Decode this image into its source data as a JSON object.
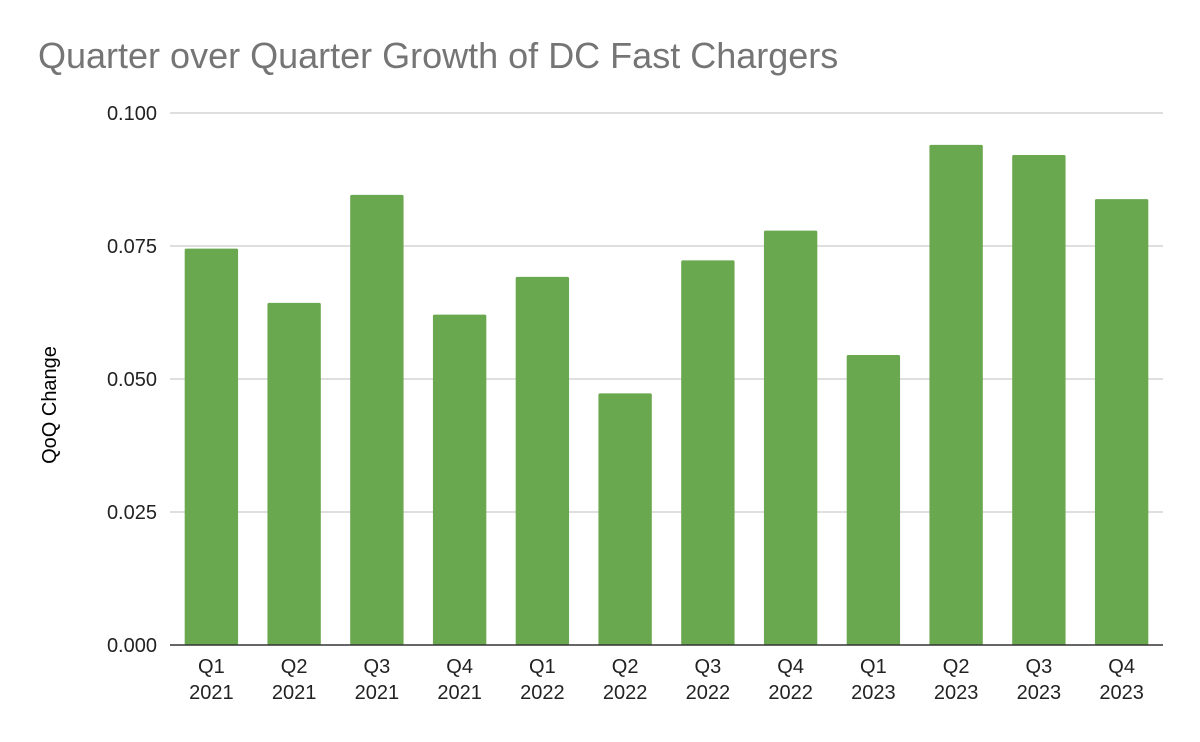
{
  "chart_data": {
    "type": "bar",
    "title": "Quarter over Quarter Growth of DC Fast Chargers",
    "xlabel": "",
    "ylabel": "QoQ Change",
    "categories": [
      [
        "Q1",
        "2021"
      ],
      [
        "Q2",
        "2021"
      ],
      [
        "Q3",
        "2021"
      ],
      [
        "Q4",
        "2021"
      ],
      [
        "Q1",
        "2022"
      ],
      [
        "Q2",
        "2022"
      ],
      [
        "Q3",
        "2022"
      ],
      [
        "Q4",
        "2022"
      ],
      [
        "Q1",
        "2023"
      ],
      [
        "Q2",
        "2023"
      ],
      [
        "Q3",
        "2023"
      ],
      [
        "Q4",
        "2023"
      ]
    ],
    "values": [
      0.0745,
      0.0643,
      0.0846,
      0.0621,
      0.0692,
      0.0473,
      0.0723,
      0.0779,
      0.0545,
      0.094,
      0.0921,
      0.0838
    ],
    "ylim": [
      0,
      0.1
    ],
    "yticks": [
      "0.000",
      "0.025",
      "0.050",
      "0.075",
      "0.100"
    ],
    "ytick_values": [
      0,
      0.025,
      0.05,
      0.075,
      0.1
    ],
    "grid": true,
    "legend": "none",
    "colors": {
      "bar": "#6aa84f",
      "title": "#757575",
      "grid": "#cccccc",
      "axis": "#333333"
    }
  }
}
